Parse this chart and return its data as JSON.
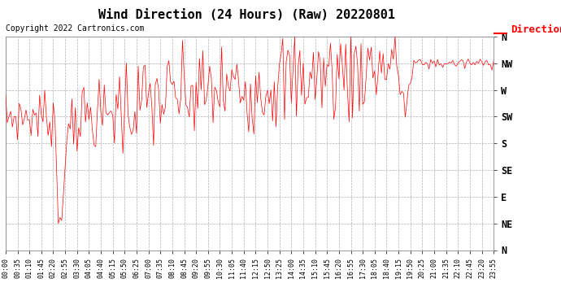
{
  "title": "Wind Direction (24 Hours) (Raw) 20220801",
  "copyright": "Copyright 2022 Cartronics.com",
  "legend_label": "Direction",
  "legend_color": "#ff0000",
  "background_color": "#ffffff",
  "plot_bg_color": "#ffffff",
  "grid_color": "#b0b0b0",
  "line_color": "#ff0000",
  "title_fontsize": 11,
  "copyright_fontsize": 7,
  "ytick_labels": [
    "N",
    "NW",
    "W",
    "SW",
    "S",
    "SE",
    "E",
    "NE",
    "N"
  ],
  "ytick_values": [
    360,
    315,
    270,
    225,
    180,
    135,
    90,
    45,
    0
  ],
  "ylim": [
    0,
    360
  ],
  "tick_step_minutes": 35,
  "data_interval_minutes": 5
}
